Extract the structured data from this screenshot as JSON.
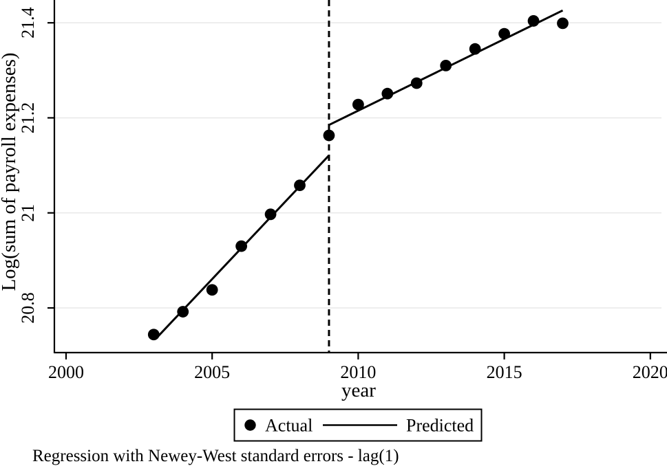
{
  "note": "Regression with Newey-West standard errors - lag(1)",
  "colors": {
    "foreground": "#000000",
    "background": "#ffffff",
    "grid": "#e8e8e8"
  },
  "chart_data": {
    "type": "scatter",
    "title": "",
    "xlabel": "year",
    "ylabel": "Log(sum of payroll expenses)",
    "x_tick_labels": [
      "2000",
      "2005",
      "2010",
      "2015",
      "2020"
    ],
    "x_tick_values": [
      2000,
      2005,
      2010,
      2015,
      2020
    ],
    "y_tick_labels": [
      "20.8",
      "21",
      "21.2",
      "21.4"
    ],
    "y_tick_values": [
      20.8,
      21,
      21.2,
      21.4
    ],
    "xlim": [
      1999.6,
      2020.57
    ],
    "ylim": [
      20.706,
      21.448
    ],
    "grid": "horizontal-light",
    "cutoff": {
      "x": 2009,
      "style": "dashed-vertical"
    },
    "series": [
      {
        "name": "Actual",
        "type": "scatter",
        "marker": "filled-circle",
        "x": [
          2003,
          2004,
          2005,
          2006,
          2007,
          2008,
          2009,
          2010,
          2011,
          2012,
          2013,
          2014,
          2015,
          2016,
          2017
        ],
        "y": [
          20.744,
          20.792,
          20.838,
          20.93,
          20.997,
          21.058,
          21.163,
          21.228,
          21.251,
          21.273,
          21.31,
          21.345,
          21.377,
          21.404,
          21.399
        ]
      },
      {
        "name": "Predicted",
        "type": "line",
        "segments": [
          {
            "x": [
              2003.1,
              2009
            ],
            "y": [
              20.737,
              21.121
            ]
          },
          {
            "x": [
              2009,
              2017
            ],
            "y": [
              21.185,
              21.426
            ]
          }
        ]
      }
    ],
    "legend": {
      "position": "bottom-center",
      "border": true,
      "entries": [
        "Actual",
        "Predicted"
      ]
    }
  }
}
